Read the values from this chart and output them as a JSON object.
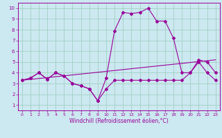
{
  "xlabel": "Windchill (Refroidissement éolien,°C)",
  "bg_color": "#cce8f0",
  "line_color": "#990099",
  "grid_color": "#99ccbb",
  "xlim": [
    -0.5,
    23.5
  ],
  "ylim": [
    0.5,
    10.5
  ],
  "xticks": [
    0,
    1,
    2,
    3,
    4,
    5,
    6,
    7,
    8,
    9,
    10,
    11,
    12,
    13,
    14,
    15,
    16,
    17,
    18,
    19,
    20,
    21,
    22,
    23
  ],
  "yticks": [
    1,
    2,
    3,
    4,
    5,
    6,
    7,
    8,
    9,
    10
  ],
  "line1_x": [
    0,
    1,
    2,
    3,
    4,
    5,
    6,
    7,
    8,
    9,
    10,
    11,
    12,
    13,
    14,
    15,
    16,
    17,
    18,
    19,
    20,
    21,
    22,
    23
  ],
  "line1_y": [
    3.3,
    3.5,
    4.0,
    3.4,
    4.0,
    3.7,
    3.0,
    2.8,
    2.5,
    1.4,
    2.5,
    3.3,
    3.3,
    3.3,
    3.3,
    3.3,
    3.3,
    3.3,
    3.3,
    3.3,
    4.0,
    5.0,
    4.0,
    3.3
  ],
  "line2_x": [
    0,
    1,
    2,
    3,
    4,
    5,
    6,
    7,
    8,
    9,
    10,
    11,
    12,
    13,
    14,
    15,
    16,
    17,
    18,
    19,
    20,
    21,
    22,
    23
  ],
  "line2_y": [
    3.3,
    3.5,
    4.0,
    3.4,
    4.0,
    3.7,
    3.0,
    2.8,
    2.5,
    1.4,
    3.5,
    7.9,
    9.6,
    9.5,
    9.6,
    10.0,
    8.8,
    8.8,
    7.2,
    4.0,
    4.0,
    5.2,
    5.0,
    4.0
  ],
  "trend_x": [
    0,
    23
  ],
  "trend_y": [
    3.3,
    5.2
  ]
}
